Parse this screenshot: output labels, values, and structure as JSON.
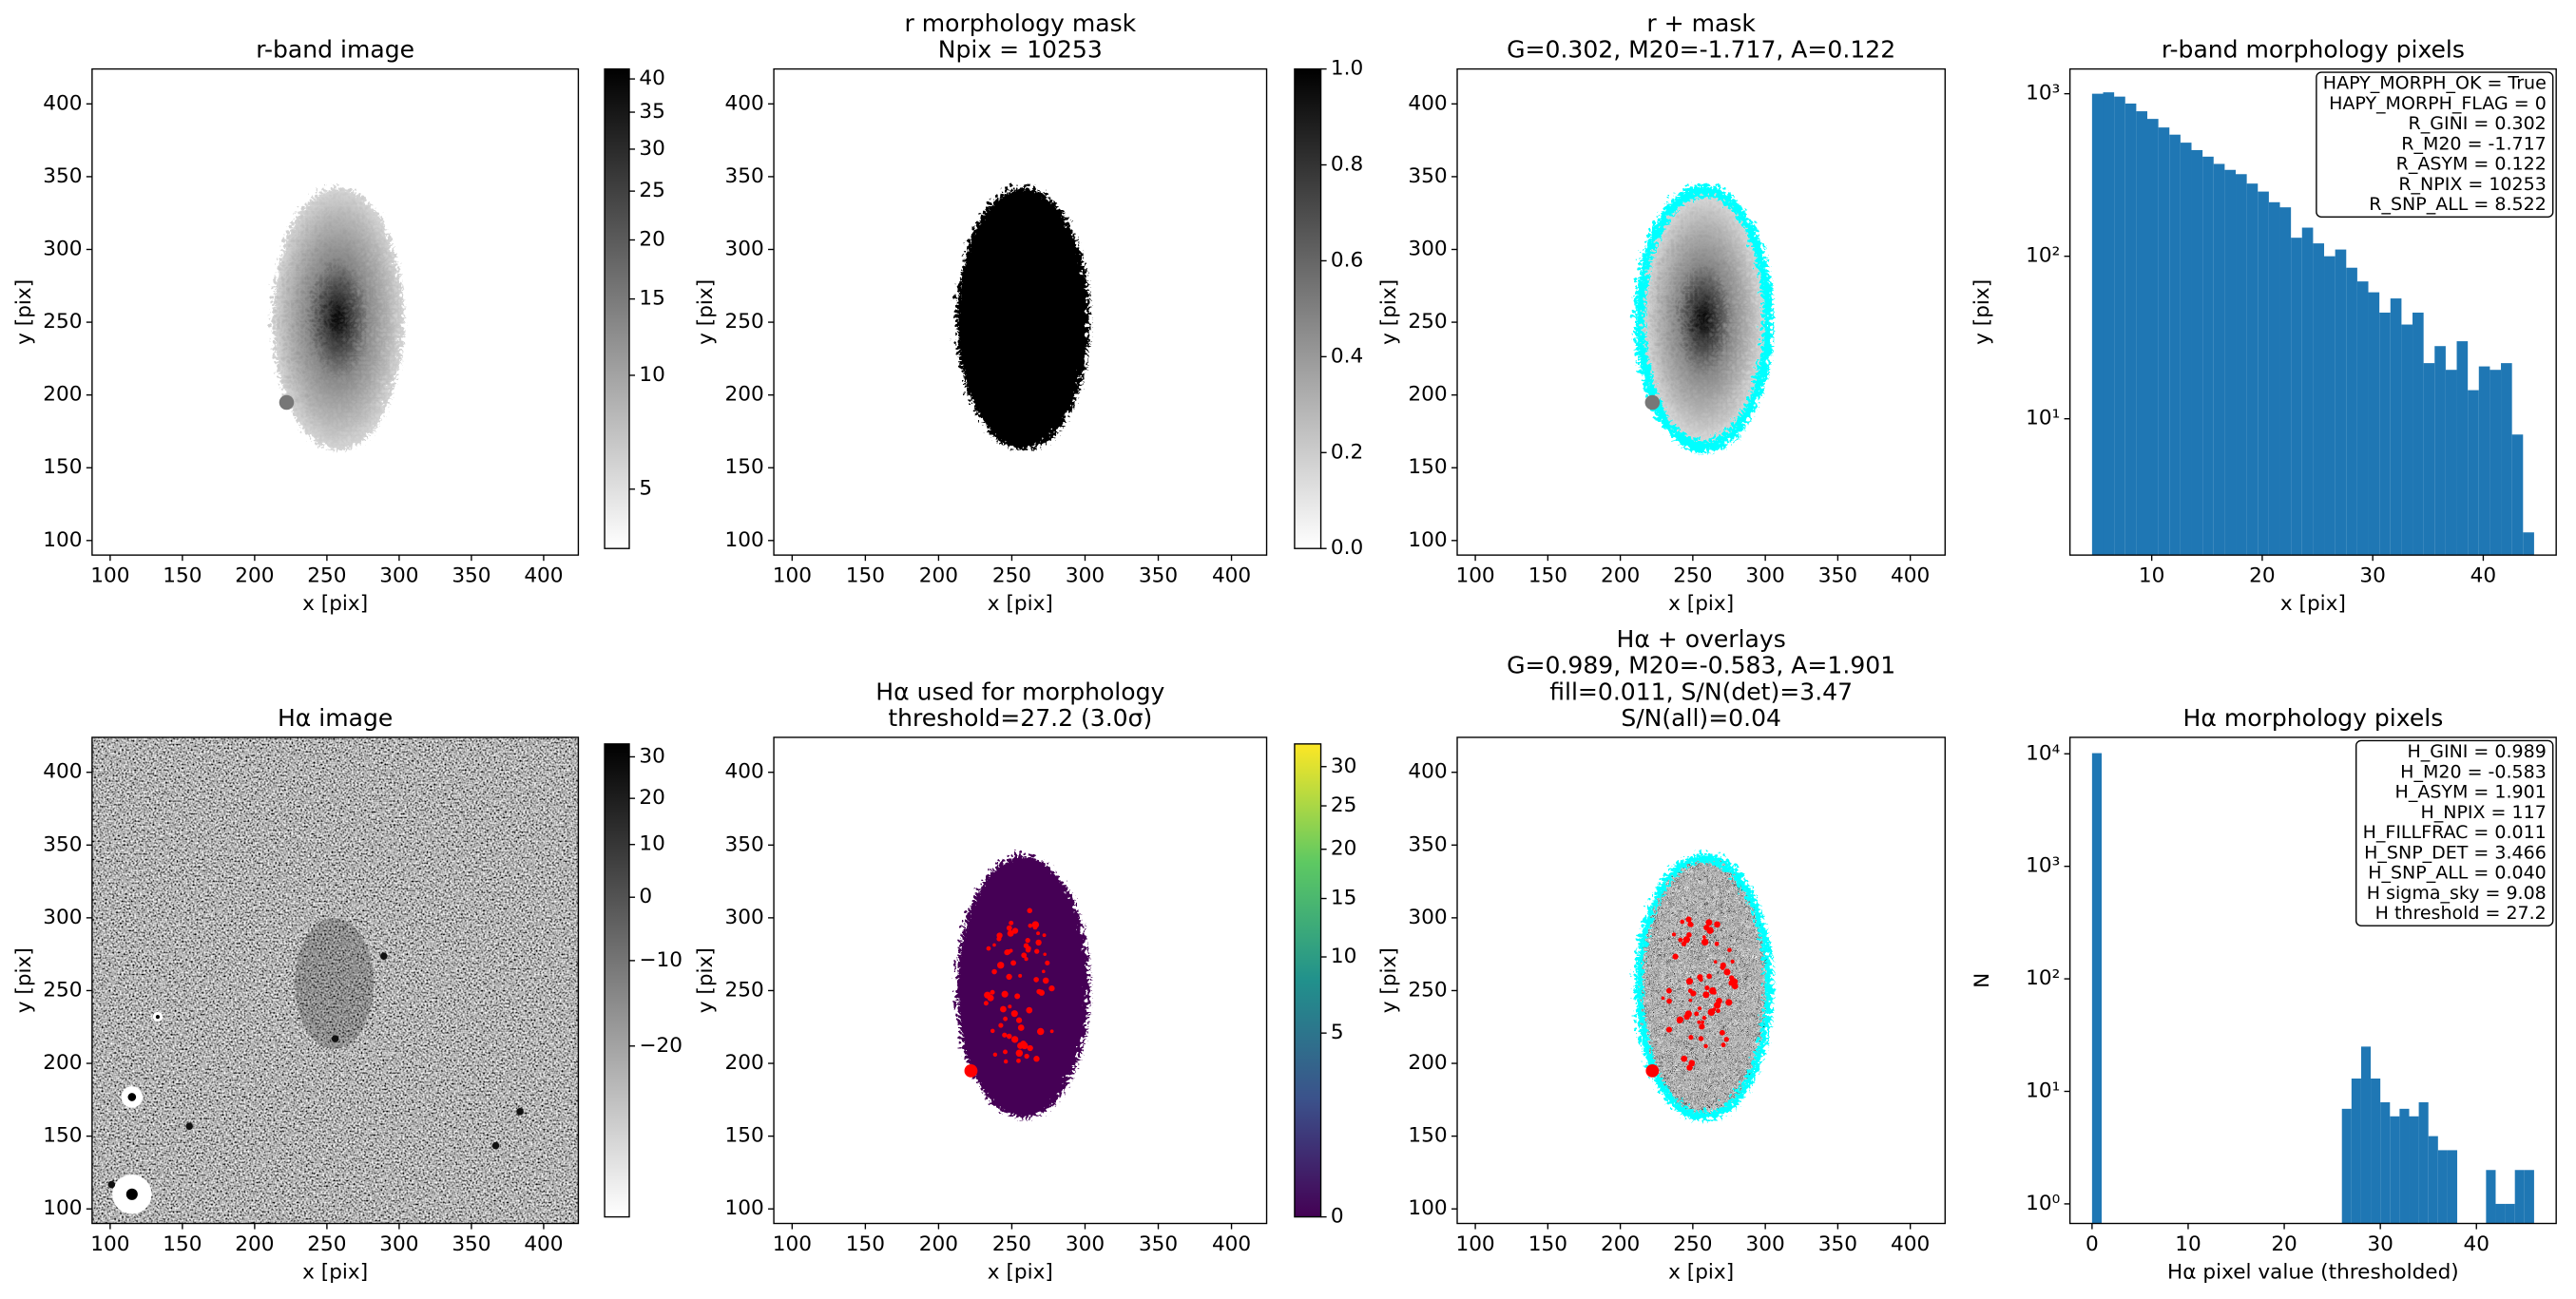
{
  "chart_data": [
    {
      "type": "image",
      "title": [
        "r-band image"
      ],
      "xlabel": "x [pix]",
      "ylabel": "y [pix]",
      "xlim": [
        87.5,
        424
      ],
      "ylim": [
        90,
        424
      ],
      "xticks": [
        100,
        150,
        200,
        250,
        300,
        350,
        400
      ],
      "yticks": [
        100,
        150,
        200,
        250,
        300,
        350,
        400
      ],
      "colorbar": {
        "cmap": "gray_r",
        "clim": [
          3.3,
          41.6
        ],
        "norm": {
          "type": "power",
          "gamma": 0.25,
          "offset": 0
        },
        "ticks": [
          5,
          10,
          15,
          20,
          25,
          30,
          35,
          40
        ]
      }
    },
    {
      "type": "image",
      "title": [
        "r morphology mask",
        "Npix = 10253"
      ],
      "xlabel": "x [pix]",
      "ylabel": "y [pix]",
      "xlim": [
        87.5,
        424
      ],
      "ylim": [
        90,
        424
      ],
      "xticks": [
        100,
        150,
        200,
        250,
        300,
        350,
        400
      ],
      "yticks": [
        100,
        150,
        200,
        250,
        300,
        350,
        400
      ],
      "colorbar": {
        "cmap": "gray_r",
        "clim": [
          0,
          1
        ],
        "ticks": [
          {
            "value": 0,
            "label": "0.0"
          },
          0.2,
          0.4,
          0.6,
          0.8,
          {
            "value": 1,
            "label": "1.0"
          }
        ]
      }
    },
    {
      "type": "image",
      "title": [
        "r + mask",
        "G=0.302, M20=-1.717, A=0.122"
      ],
      "xlabel": "x [pix]",
      "ylabel": "y [pix]",
      "xlim": [
        87.5,
        424
      ],
      "ylim": [
        90,
        424
      ],
      "xticks": [
        100,
        150,
        200,
        250,
        300,
        350,
        400
      ],
      "yticks": [
        100,
        150,
        200,
        250,
        300,
        350,
        400
      ]
    },
    {
      "type": "histogram",
      "title": [
        "r-band morphology pixels"
      ],
      "xlabel": "x [pix]",
      "ylabel": "y [pix]",
      "color": "#1f77b4",
      "yscale": "log",
      "xlim": [
        2.6,
        46.6
      ],
      "ylim": [
        1.45,
        1420
      ],
      "xticks": [
        10,
        20,
        30,
        40
      ],
      "yticks": [
        {
          "value": 10,
          "label": "10¹"
        },
        {
          "value": 100,
          "label": "10²"
        },
        {
          "value": 1000,
          "label": "10³"
        }
      ],
      "bins": [
        4.6,
        5.6,
        6.6,
        7.6,
        8.6,
        9.6,
        10.6,
        11.6,
        12.6,
        13.6,
        14.6,
        15.6,
        16.6,
        17.6,
        18.6,
        19.6,
        20.6,
        21.6,
        22.6,
        23.6,
        24.6,
        25.6,
        26.6,
        27.6,
        28.6,
        29.6,
        30.6,
        31.6,
        32.6,
        33.6,
        34.6,
        35.6,
        36.6,
        37.6,
        38.6,
        39.6,
        40.6,
        41.6,
        42.6,
        43.6,
        44.6
      ],
      "values": [
        1000,
        1020,
        960,
        870,
        780,
        700,
        620,
        560,
        500,
        450,
        410,
        370,
        340,
        320,
        280,
        250,
        215,
        200,
        130,
        150,
        120,
        100,
        110,
        85,
        70,
        60,
        45,
        55,
        38,
        45,
        22,
        28,
        20,
        30,
        15,
        21,
        20,
        22,
        8,
        2
      ],
      "annotation": [
        "HAPY_MORPH_OK = True",
        "HAPY_MORPH_FLAG = 0",
        "R_GINI = 0.302",
        "R_M20 = -1.717",
        "R_ASYM = 0.122",
        "R_NPIX = 10253",
        "R_SNP_ALL = 8.522"
      ]
    },
    {
      "type": "image",
      "title": [
        "Hα image"
      ],
      "xlabel": "x [pix]",
      "ylabel": "y [pix]",
      "xlim": [
        87.5,
        424
      ],
      "ylim": [
        90,
        424
      ],
      "xticks": [
        100,
        150,
        200,
        250,
        300,
        350,
        400
      ],
      "yticks": [
        100,
        150,
        200,
        250,
        300,
        350,
        400
      ],
      "colorbar": {
        "cmap": "gray_r",
        "clim": [
          -28,
          33.3
        ],
        "norm": {
          "type": "power",
          "gamma": 0.5
        },
        "ticks": [
          {
            "value": -20,
            "label": "−20"
          },
          {
            "value": -10,
            "label": "−10"
          },
          0,
          10,
          20,
          30
        ]
      }
    },
    {
      "type": "image",
      "title": [
        "Hα used for morphology",
        "threshold=27.2 (3.0σ)"
      ],
      "xlabel": "x [pix]",
      "ylabel": "y [pix]",
      "xlim": [
        87.5,
        424
      ],
      "ylim": [
        90,
        424
      ],
      "xticks": [
        100,
        150,
        200,
        250,
        300,
        350,
        400
      ],
      "yticks": [
        100,
        150,
        200,
        250,
        300,
        350,
        400
      ],
      "colorbar": {
        "cmap": "viridis",
        "clim": [
          0,
          33.1
        ],
        "norm": {
          "type": "power",
          "gamma": 0.5
        },
        "ticks": [
          0,
          5,
          10,
          15,
          20,
          25,
          30
        ]
      }
    },
    {
      "type": "image",
      "title": [
        "Hα + overlays",
        "G=0.989, M20=-0.583, A=1.901",
        "fill=0.011, S/N(det)=3.47",
        "S/N(all)=0.04"
      ],
      "xlabel": "x [pix]",
      "ylabel": "y [pix]",
      "xlim": [
        87.5,
        424
      ],
      "ylim": [
        90,
        424
      ],
      "xticks": [
        100,
        150,
        200,
        250,
        300,
        350,
        400
      ],
      "yticks": [
        100,
        150,
        200,
        250,
        300,
        350,
        400
      ]
    },
    {
      "type": "histogram",
      "title": [
        "Hα morphology pixels"
      ],
      "xlabel": "Hα pixel value (thresholded)",
      "ylabel": "N",
      "color": "#1f77b4",
      "yscale": "log",
      "xlim": [
        -2.3,
        48.3
      ],
      "ylim": [
        0.67,
        14000
      ],
      "xticks": [
        0,
        10,
        20,
        30,
        40
      ],
      "yticks": [
        {
          "value": 1,
          "label": "10⁰"
        },
        {
          "value": 10,
          "label": "10¹"
        },
        {
          "value": 100,
          "label": "10²"
        },
        {
          "value": 1000,
          "label": "10³"
        },
        {
          "value": 10000,
          "label": "10⁴"
        }
      ],
      "bins": [
        0,
        1,
        2,
        3,
        4,
        5,
        6,
        7,
        8,
        9,
        10,
        11,
        12,
        13,
        14,
        15,
        16,
        17,
        18,
        19,
        20,
        21,
        22,
        23,
        24,
        25,
        26,
        27,
        28,
        29,
        30,
        31,
        32,
        33,
        34,
        35,
        36,
        37,
        38,
        39,
        40,
        41,
        42,
        43,
        44,
        45,
        46
      ],
      "values": [
        10136,
        0,
        0,
        0,
        0,
        0,
        0,
        0,
        0,
        0,
        0,
        0,
        0,
        0,
        0,
        0,
        0,
        0,
        0,
        0,
        0,
        0,
        0,
        0,
        0,
        0,
        7,
        13,
        25,
        13,
        8,
        6,
        7,
        6,
        8,
        4,
        3,
        3,
        0,
        0,
        0,
        2,
        1,
        1,
        2,
        2
      ],
      "annotation": [
        "H_GINI = 0.989",
        "H_M20 = -0.583",
        "H_ASYM = 1.901",
        "H_NPIX = 117",
        "H_FILLFRAC = 0.011",
        "H_SNP_DET = 3.466",
        "H_SNP_ALL = 0.040",
        "H sigma_sky = 9.08",
        "H threshold = 27.2"
      ]
    }
  ]
}
